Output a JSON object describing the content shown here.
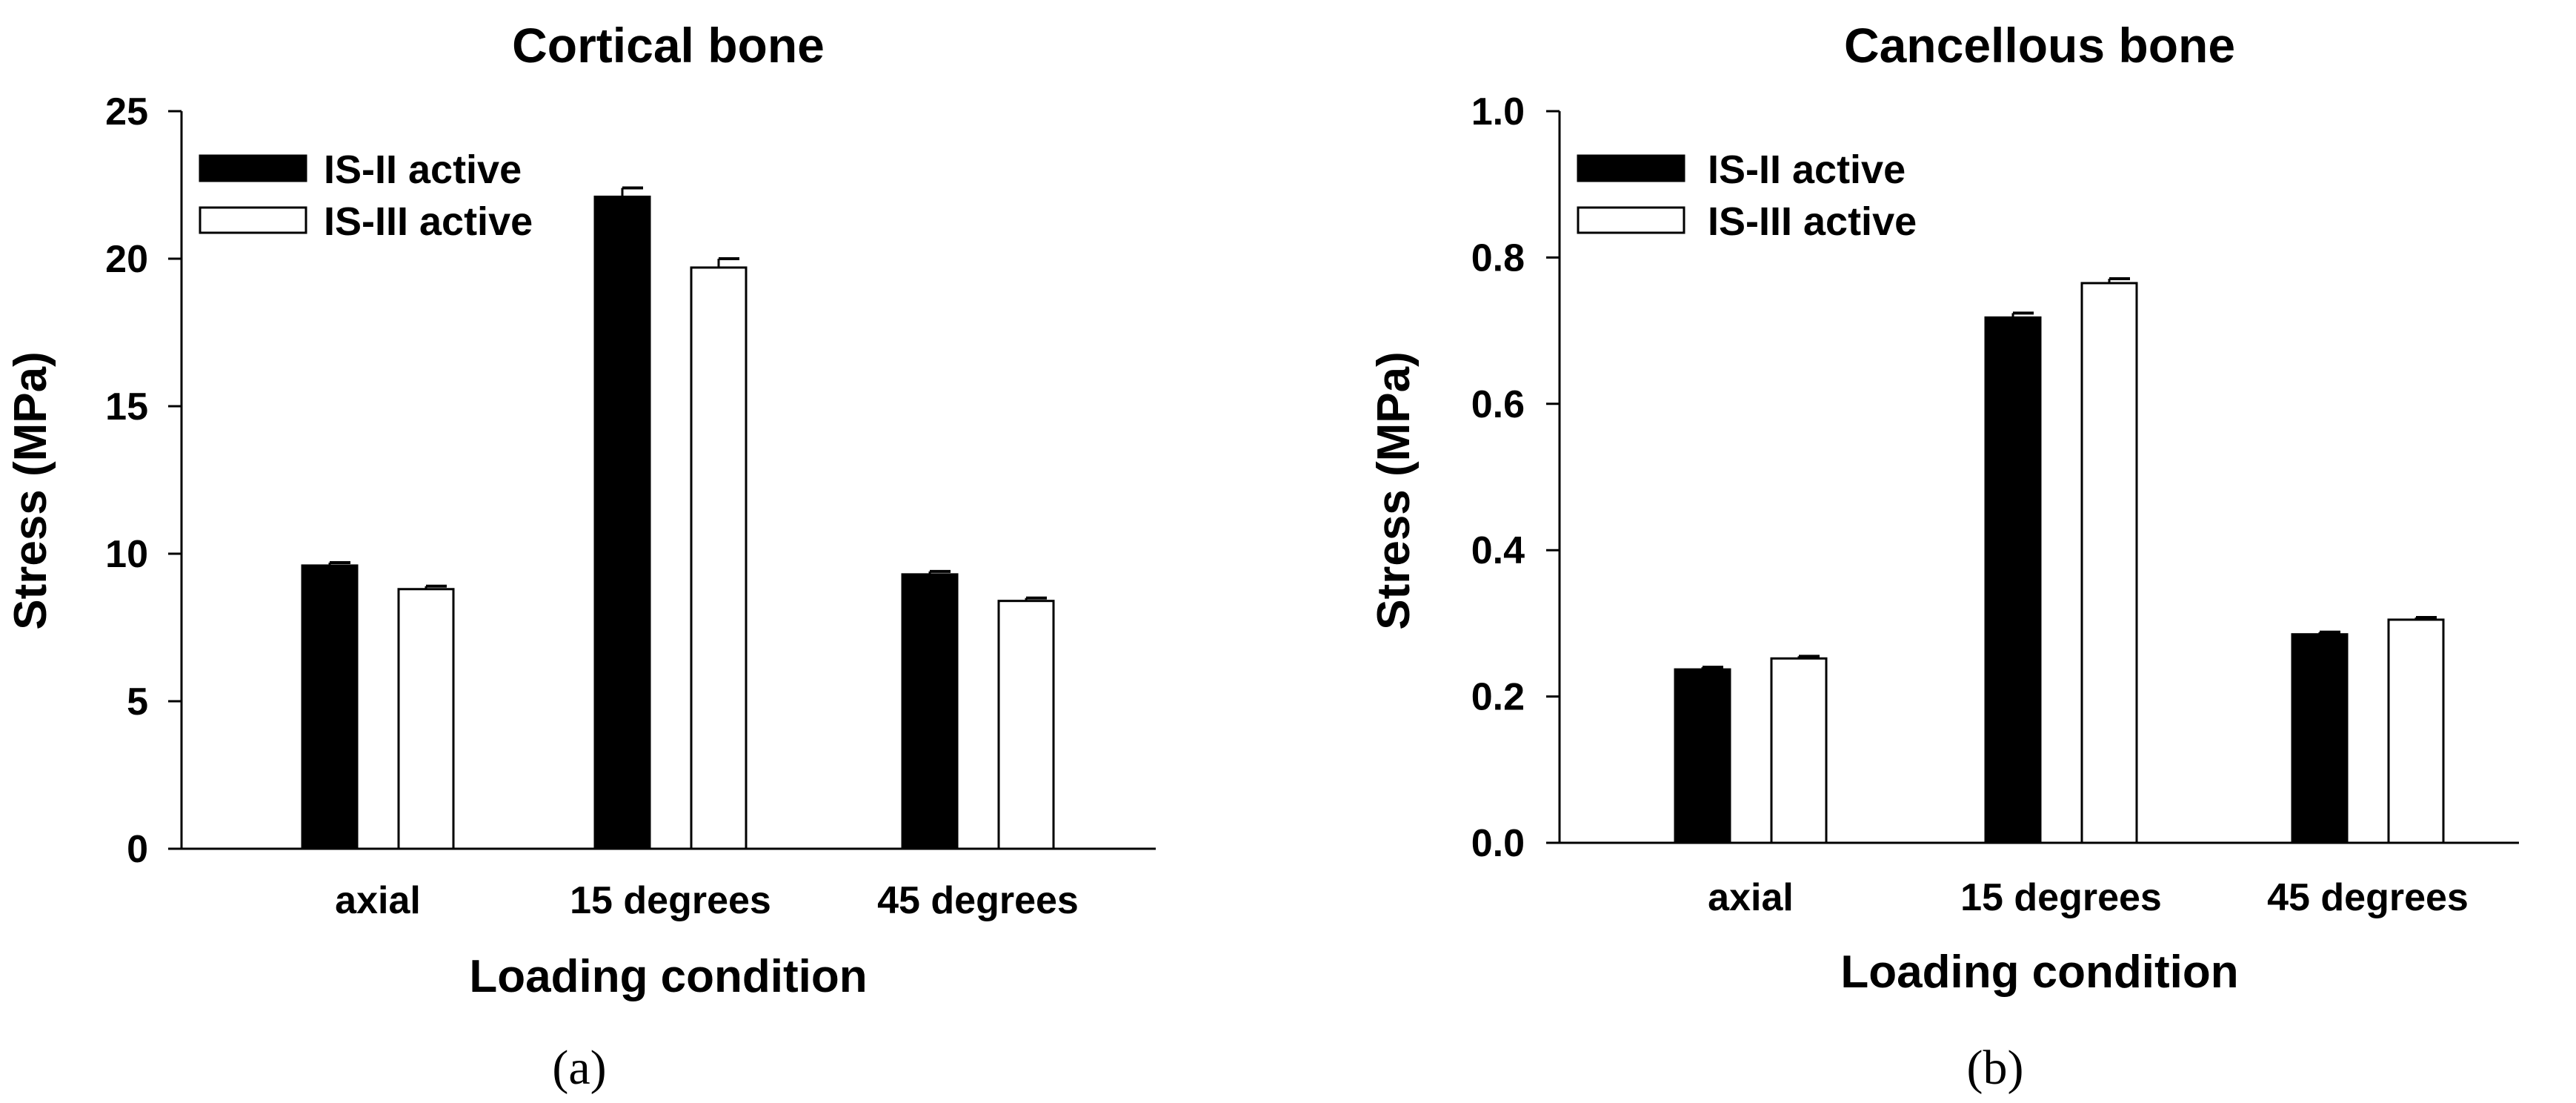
{
  "chart_data": [
    {
      "type": "bar",
      "title": "Cortical bone",
      "panel_label": "(a)",
      "xlabel": "Loading condition",
      "ylabel": "Stress (MPa)",
      "categories": [
        "axial",
        "15 degrees",
        "45 degrees"
      ],
      "ylim": [
        0,
        25
      ],
      "yticks": [
        0,
        5,
        10,
        15,
        20,
        25
      ],
      "ytick_labels": [
        "0",
        "5",
        "10",
        "15",
        "20",
        "25"
      ],
      "grid": false,
      "legend_position": "top-left",
      "series": [
        {
          "name": "IS-II active",
          "color": "#000000",
          "values": [
            9.6,
            22.1,
            9.3
          ],
          "errors": [
            0.1,
            0.3,
            0.1
          ]
        },
        {
          "name": "IS-III active",
          "color": "#ffffff",
          "values": [
            8.8,
            19.7,
            8.4
          ],
          "errors": [
            0.1,
            0.3,
            0.1
          ]
        }
      ]
    },
    {
      "type": "bar",
      "title": "Cancellous bone",
      "panel_label": "(b)",
      "xlabel": "Loading condition",
      "ylabel": "Stress (MPa)",
      "categories": [
        "axial",
        "15 degrees",
        "45 degrees"
      ],
      "ylim": [
        0,
        1.0
      ],
      "yticks": [
        0,
        0.2,
        0.4,
        0.6,
        0.8,
        1.0
      ],
      "ytick_labels": [
        "0.0",
        "0.2",
        "0.4",
        "0.6",
        "0.8",
        "1.0"
      ],
      "grid": false,
      "legend_position": "top-left",
      "series": [
        {
          "name": "IS-II active",
          "color": "#000000",
          "values": [
            0.237,
            0.718,
            0.285
          ],
          "errors": [
            0.003,
            0.006,
            0.003
          ]
        },
        {
          "name": "IS-III active",
          "color": "#ffffff",
          "values": [
            0.252,
            0.765,
            0.305
          ],
          "errors": [
            0.003,
            0.006,
            0.003
          ]
        }
      ]
    }
  ]
}
